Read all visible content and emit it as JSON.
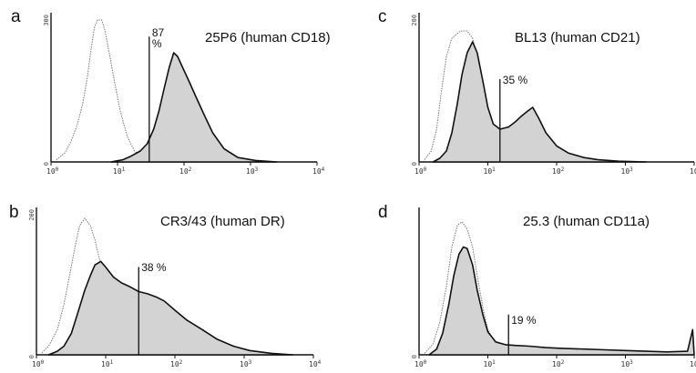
{
  "chart_data": [
    {
      "panel": "a",
      "type": "area",
      "title": "25P6 (human CD18)",
      "marker": {
        "x": 30,
        "label": "87\n%"
      },
      "xscale": "log",
      "xlim": [
        1,
        10000
      ],
      "x_ticks": [
        "10^0",
        "10^1",
        "10^2",
        "10^3",
        "10^4"
      ],
      "y_ticks": [
        "3θ0",
        "0"
      ],
      "series": [
        {
          "style": "outline-dotted",
          "points": [
            [
              1.2,
              3
            ],
            [
              1.6,
              12
            ],
            [
              2.0,
              28
            ],
            [
              2.5,
              52
            ],
            [
              3.0,
              80
            ],
            [
              3.5,
              115
            ],
            [
              4.0,
              155
            ],
            [
              4.5,
              185
            ],
            [
              5.0,
              195
            ],
            [
              5.8,
              195
            ],
            [
              6.5,
              180
            ],
            [
              7.5,
              150
            ],
            [
              9.0,
              110
            ],
            [
              11,
              70
            ],
            [
              14,
              35
            ],
            [
              18,
              15
            ],
            [
              25,
              5
            ],
            [
              35,
              2
            ],
            [
              60,
              0
            ]
          ]
        },
        {
          "style": "filled-grey",
          "points": [
            [
              8,
              0
            ],
            [
              12,
              3
            ],
            [
              16,
              8
            ],
            [
              22,
              15
            ],
            [
              28,
              25
            ],
            [
              35,
              45
            ],
            [
              42,
              70
            ],
            [
              50,
              100
            ],
            [
              60,
              130
            ],
            [
              70,
              150
            ],
            [
              80,
              145
            ],
            [
              95,
              130
            ],
            [
              120,
              110
            ],
            [
              150,
              90
            ],
            [
              200,
              65
            ],
            [
              270,
              40
            ],
            [
              400,
              18
            ],
            [
              650,
              6
            ],
            [
              1200,
              2
            ],
            [
              2500,
              0
            ]
          ]
        }
      ]
    },
    {
      "panel": "c",
      "type": "area",
      "title": "BL13 (human CD21)",
      "marker": {
        "x": 15,
        "label": "35 %"
      },
      "xscale": "log",
      "xlim": [
        1,
        10000
      ],
      "x_ticks": [
        "10^0",
        "10^1",
        "10^2",
        "10^3",
        "10^4"
      ],
      "y_ticks": [
        "200",
        "0"
      ],
      "series": [
        {
          "style": "outline-dotted",
          "points": [
            [
              1.2,
              3
            ],
            [
              1.5,
              15
            ],
            [
              1.8,
              45
            ],
            [
              2.1,
              95
            ],
            [
              2.5,
              145
            ],
            [
              3.0,
              170
            ],
            [
              4.0,
              180
            ],
            [
              5.0,
              180
            ],
            [
              6.0,
              170
            ],
            [
              7.0,
              140
            ],
            [
              8.5,
              95
            ],
            [
              10,
              55
            ],
            [
              12,
              25
            ],
            [
              15,
              8
            ],
            [
              20,
              2
            ],
            [
              30,
              0
            ]
          ]
        },
        {
          "style": "filled-grey",
          "points": [
            [
              1.6,
              0
            ],
            [
              2.0,
              5
            ],
            [
              2.5,
              15
            ],
            [
              3.0,
              40
            ],
            [
              3.6,
              80
            ],
            [
              4.2,
              120
            ],
            [
              5.0,
              150
            ],
            [
              6.0,
              165
            ],
            [
              7.0,
              150
            ],
            [
              8.5,
              110
            ],
            [
              10,
              75
            ],
            [
              12,
              52
            ],
            [
              15,
              45
            ],
            [
              20,
              48
            ],
            [
              25,
              55
            ],
            [
              30,
              62
            ],
            [
              38,
              70
            ],
            [
              45,
              75
            ],
            [
              55,
              60
            ],
            [
              70,
              40
            ],
            [
              100,
              22
            ],
            [
              150,
              12
            ],
            [
              250,
              6
            ],
            [
              400,
              3
            ],
            [
              800,
              1
            ],
            [
              2000,
              0
            ]
          ]
        }
      ]
    },
    {
      "panel": "b",
      "type": "area",
      "title": "CR3/43 (human DR)",
      "marker": {
        "x": 30,
        "label": "38 %"
      },
      "xscale": "log",
      "xlim": [
        1,
        10000
      ],
      "x_ticks": [
        "10^0",
        "10^1",
        "10^2",
        "10^3",
        "10^4"
      ],
      "y_ticks": [
        "2θ0",
        "0"
      ],
      "series": [
        {
          "style": "outline-dotted",
          "points": [
            [
              1.2,
              3
            ],
            [
              1.5,
              12
            ],
            [
              2.0,
              35
            ],
            [
              2.5,
              70
            ],
            [
              3.0,
              110
            ],
            [
              3.6,
              150
            ],
            [
              4.2,
              180
            ],
            [
              5.0,
              190
            ],
            [
              6.0,
              180
            ],
            [
              7.0,
              160
            ],
            [
              8.5,
              125
            ],
            [
              10,
              90
            ],
            [
              12,
              60
            ],
            [
              15,
              35
            ],
            [
              20,
              15
            ],
            [
              28,
              6
            ],
            [
              40,
              2
            ],
            [
              70,
              0
            ]
          ]
        },
        {
          "style": "filled-grey",
          "points": [
            [
              1.5,
              0
            ],
            [
              2.0,
              5
            ],
            [
              2.5,
              12
            ],
            [
              3.2,
              30
            ],
            [
              4.0,
              60
            ],
            [
              5.0,
              90
            ],
            [
              6.0,
              110
            ],
            [
              7.0,
              125
            ],
            [
              8.5,
              130
            ],
            [
              10,
              122
            ],
            [
              13,
              108
            ],
            [
              17,
              100
            ],
            [
              22,
              95
            ],
            [
              30,
              88
            ],
            [
              40,
              85
            ],
            [
              55,
              80
            ],
            [
              70,
              75
            ],
            [
              100,
              62
            ],
            [
              150,
              48
            ],
            [
              250,
              35
            ],
            [
              400,
              22
            ],
            [
              700,
              12
            ],
            [
              1200,
              6
            ],
            [
              2500,
              2
            ],
            [
              5000,
              0
            ]
          ]
        }
      ]
    },
    {
      "panel": "d",
      "type": "area",
      "title": "25.3 (human CD11a)",
      "marker": {
        "x": 20,
        "label": "19 %"
      },
      "xscale": "log",
      "xlim": [
        1,
        10000
      ],
      "x_ticks": [
        "10^0",
        "10^1",
        "10^2",
        "10^3",
        "10^4"
      ],
      "y_ticks": [
        "",
        "0"
      ],
      "series": [
        {
          "style": "outline-dotted",
          "points": [
            [
              1.2,
              2
            ],
            [
              1.6,
              15
            ],
            [
              2.0,
              45
            ],
            [
              2.5,
              95
            ],
            [
              3.0,
              150
            ],
            [
              3.6,
              180
            ],
            [
              4.2,
              185
            ],
            [
              5.0,
              175
            ],
            [
              6.0,
              150
            ],
            [
              7.0,
              110
            ],
            [
              8.5,
              65
            ],
            [
              10,
              35
            ],
            [
              13,
              15
            ],
            [
              18,
              6
            ],
            [
              30,
              2
            ],
            [
              60,
              0
            ]
          ]
        },
        {
          "style": "filled-grey",
          "points": [
            [
              1.4,
              0
            ],
            [
              1.8,
              8
            ],
            [
              2.2,
              30
            ],
            [
              2.7,
              70
            ],
            [
              3.2,
              110
            ],
            [
              3.8,
              140
            ],
            [
              4.4,
              150
            ],
            [
              5.0,
              148
            ],
            [
              6.0,
              125
            ],
            [
              7.0,
              90
            ],
            [
              8.5,
              55
            ],
            [
              10,
              32
            ],
            [
              13,
              18
            ],
            [
              18,
              14
            ],
            [
              25,
              13
            ],
            [
              40,
              12
            ],
            [
              70,
              10
            ],
            [
              120,
              9
            ],
            [
              250,
              8
            ],
            [
              500,
              7
            ],
            [
              1000,
              6
            ],
            [
              2000,
              5
            ],
            [
              4000,
              4
            ],
            [
              8000,
              5
            ],
            [
              9500,
              35
            ],
            [
              10000,
              0
            ]
          ]
        }
      ]
    }
  ]
}
